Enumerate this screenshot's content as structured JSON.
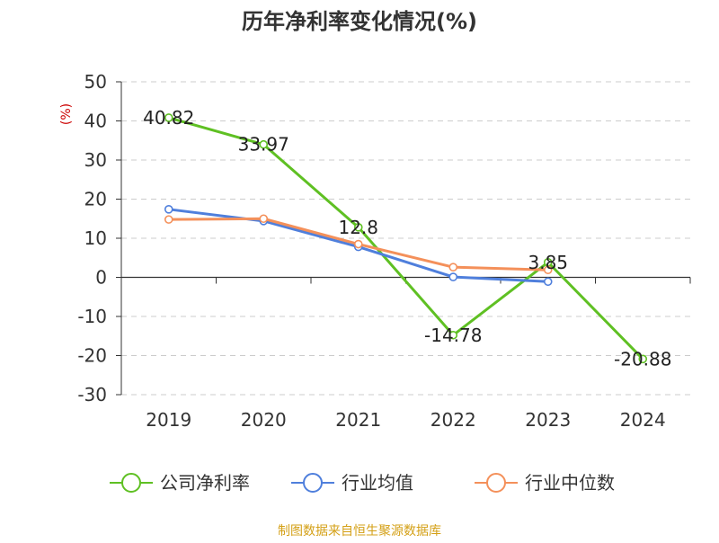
{
  "chart_data": {
    "type": "line",
    "title": "历年净利率变化情况(%)",
    "xlabel": "",
    "ylabel": "(%)",
    "categories": [
      "2019",
      "2020",
      "2021",
      "2022",
      "2023",
      "2024"
    ],
    "ylim": [
      -30,
      50
    ],
    "yticks": [
      50,
      40,
      30,
      20,
      10,
      0,
      -10,
      -20,
      -30
    ],
    "grid": true,
    "legend_position": "bottom",
    "series": [
      {
        "name": "公司净利率",
        "color": "#5fc023",
        "values": [
          40.82,
          33.97,
          12.8,
          -14.78,
          3.85,
          -20.88
        ],
        "labels": [
          "40.82",
          "33.97",
          "12.8",
          "-14.78",
          "3.85",
          "-20.88"
        ]
      },
      {
        "name": "行业均值",
        "color": "#4f7fdc",
        "values": [
          17.4,
          14.4,
          7.8,
          0.1,
          -1.1,
          null
        ]
      },
      {
        "name": "行业中位数",
        "color": "#f4905a",
        "values": [
          14.8,
          15.0,
          8.5,
          2.6,
          1.9,
          null
        ]
      }
    ]
  },
  "source": {
    "text": "制图数据来自恒生聚源数据库",
    "color": "#d4a017"
  },
  "ylabel_color": "#cc0000"
}
